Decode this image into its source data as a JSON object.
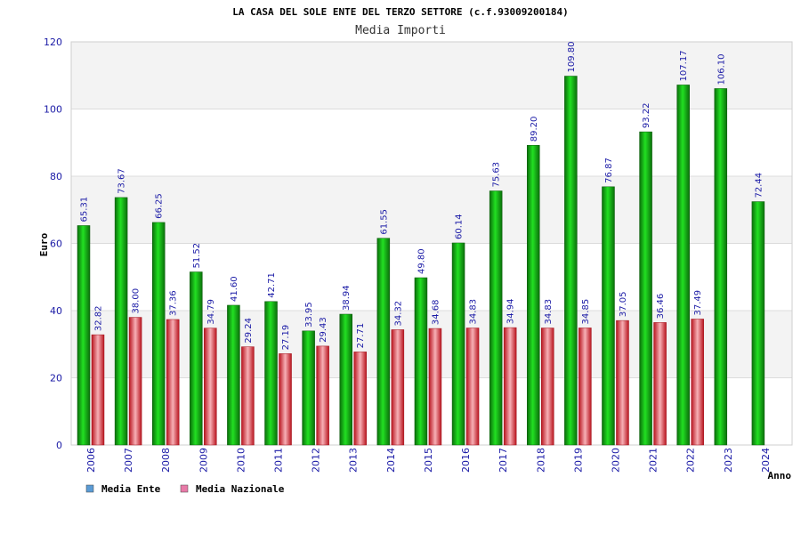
{
  "chart_data": {
    "type": "bar",
    "title": "LA CASA DEL SOLE ENTE DEL TERZO SETTORE (c.f.93009200184)",
    "subtitle": "Media Importi",
    "xlabel": "Anno",
    "ylabel": "Euro",
    "ylim": [
      0,
      120
    ],
    "yticks": [
      0,
      20,
      40,
      60,
      80,
      100,
      120
    ],
    "grid": true,
    "legend_position": "bottom-left",
    "categories": [
      "2006",
      "2007",
      "2008",
      "2009",
      "2010",
      "2011",
      "2012",
      "2013",
      "2014",
      "2015",
      "2016",
      "2017",
      "2018",
      "2019",
      "2020",
      "2021",
      "2022",
      "2023",
      "2024"
    ],
    "series": [
      {
        "name": "Media Ente",
        "legend_color": "#5b9bd5",
        "bar_color": "#11b811",
        "values": [
          65.31,
          73.67,
          66.25,
          51.52,
          41.6,
          42.71,
          33.95,
          38.94,
          61.55,
          49.8,
          60.14,
          75.63,
          89.2,
          109.8,
          76.87,
          93.22,
          107.17,
          106.1,
          72.44
        ],
        "labels": [
          "65.31",
          "73.67",
          "66.25",
          "51.52",
          "41.60",
          "42.71",
          "33.95",
          "38.94",
          "61.55",
          "49.80",
          "60.14",
          "75.63",
          "89.20",
          "109.80",
          "76.87",
          "93.22",
          "107.17",
          "106.10",
          "72.44"
        ]
      },
      {
        "name": "Media Nazionale",
        "legend_color": "#e87aa8",
        "bar_color": "#e8434f",
        "values": [
          32.82,
          38.0,
          37.36,
          34.79,
          29.24,
          27.19,
          29.43,
          27.71,
          34.32,
          34.68,
          34.83,
          34.94,
          34.83,
          34.85,
          37.05,
          36.46,
          37.49,
          null,
          null
        ],
        "labels": [
          "32.82",
          "38.00",
          "37.36",
          "34.79",
          "29.24",
          "27.19",
          "29.43",
          "27.71",
          "34.32",
          "34.68",
          "34.83",
          "34.94",
          "34.83",
          "34.85",
          "37.05",
          "36.46",
          "37.49",
          null,
          null
        ]
      }
    ]
  }
}
